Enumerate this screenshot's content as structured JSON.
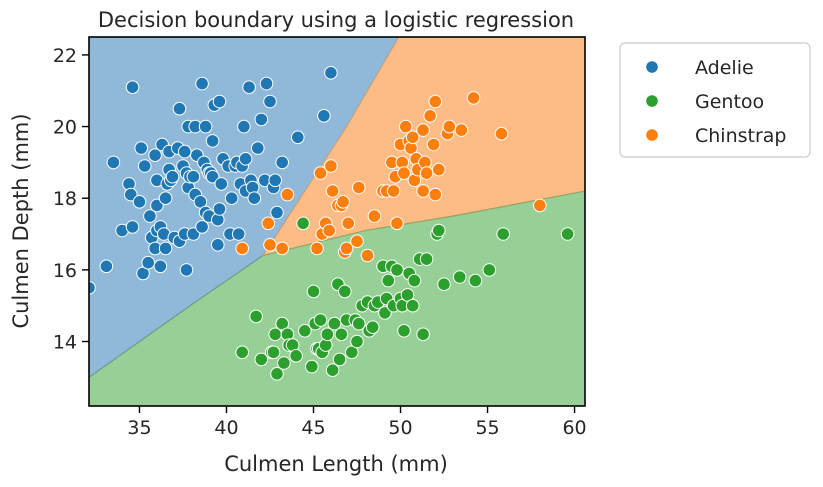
{
  "chart_data": {
    "type": "scatter",
    "title": "Decision boundary using a logistic regression",
    "xlabel": "Culmen Length (mm)",
    "ylabel": "Culmen Depth (mm)",
    "xlim": [
      32.1,
      60.6
    ],
    "ylim": [
      12.2,
      22.5
    ],
    "xticks": [
      35,
      40,
      45,
      50,
      55,
      60
    ],
    "yticks": [
      14,
      16,
      18,
      20,
      22
    ],
    "grid": false,
    "legend_position": "outside-right",
    "regions": [
      {
        "class": "Adelie",
        "color": "#8fb8d9",
        "boundary": [
          [
            32.1,
            13.0
          ],
          [
            38.2,
            15.1
          ],
          [
            42.1,
            16.4
          ],
          [
            46.9,
            20.0
          ],
          [
            49.9,
            22.5
          ]
        ]
      },
      {
        "class": "Chinstrap",
        "color": "#fdbc85",
        "boundary": [
          [
            42.1,
            16.4
          ],
          [
            48.0,
            17.1
          ],
          [
            53.0,
            17.5
          ],
          [
            60.6,
            18.2
          ]
        ]
      },
      {
        "class": "Gentoo",
        "color": "#96d096"
      }
    ],
    "series": [
      {
        "name": "Adelie",
        "color": "#1f77b4",
        "points": [
          [
            32.1,
            15.5
          ],
          [
            33.1,
            16.1
          ],
          [
            33.5,
            19.0
          ],
          [
            34.0,
            17.1
          ],
          [
            34.4,
            18.4
          ],
          [
            34.5,
            18.1
          ],
          [
            34.6,
            17.2
          ],
          [
            34.6,
            21.1
          ],
          [
            35.0,
            17.9
          ],
          [
            35.1,
            19.4
          ],
          [
            35.2,
            15.9
          ],
          [
            35.3,
            18.9
          ],
          [
            35.5,
            16.2
          ],
          [
            35.6,
            17.5
          ],
          [
            35.7,
            16.9
          ],
          [
            35.9,
            19.2
          ],
          [
            35.9,
            16.6
          ],
          [
            36.0,
            17.8
          ],
          [
            36.0,
            18.5
          ],
          [
            36.0,
            17.1
          ],
          [
            36.2,
            16.1
          ],
          [
            36.2,
            17.2
          ],
          [
            36.3,
            19.5
          ],
          [
            36.4,
            17.0
          ],
          [
            36.5,
            16.6
          ],
          [
            36.5,
            18.0
          ],
          [
            36.6,
            18.4
          ],
          [
            36.7,
            19.3
          ],
          [
            36.7,
            18.8
          ],
          [
            36.8,
            18.5
          ],
          [
            36.9,
            18.6
          ],
          [
            37.0,
            16.9
          ],
          [
            37.2,
            19.4
          ],
          [
            37.3,
            16.8
          ],
          [
            37.3,
            20.5
          ],
          [
            37.5,
            18.9
          ],
          [
            37.6,
            19.3
          ],
          [
            37.6,
            17.0
          ],
          [
            37.7,
            18.7
          ],
          [
            37.7,
            16.0
          ],
          [
            37.8,
            20.0
          ],
          [
            37.8,
            18.3
          ],
          [
            37.9,
            18.6
          ],
          [
            38.1,
            18.6
          ],
          [
            38.1,
            17.0
          ],
          [
            38.2,
            18.1
          ],
          [
            38.2,
            20.0
          ],
          [
            38.3,
            19.2
          ],
          [
            38.5,
            17.9
          ],
          [
            38.6,
            21.2
          ],
          [
            38.6,
            17.2
          ],
          [
            38.7,
            19.0
          ],
          [
            38.8,
            17.6
          ],
          [
            38.8,
            20.0
          ],
          [
            38.9,
            18.8
          ],
          [
            39.0,
            17.5
          ],
          [
            39.0,
            18.7
          ],
          [
            39.1,
            18.7
          ],
          [
            39.2,
            19.6
          ],
          [
            39.2,
            18.6
          ],
          [
            39.3,
            20.6
          ],
          [
            39.5,
            17.4
          ],
          [
            39.5,
            16.7
          ],
          [
            39.6,
            17.7
          ],
          [
            39.6,
            20.7
          ],
          [
            39.7,
            18.4
          ],
          [
            39.8,
            19.1
          ],
          [
            40.1,
            18.9
          ],
          [
            40.2,
            17.0
          ],
          [
            40.3,
            18.0
          ],
          [
            40.5,
            18.9
          ],
          [
            40.6,
            19.0
          ],
          [
            40.7,
            17.0
          ],
          [
            40.8,
            18.4
          ],
          [
            40.9,
            18.9
          ],
          [
            41.0,
            20.0
          ],
          [
            41.1,
            18.2
          ],
          [
            41.1,
            19.1
          ],
          [
            41.3,
            21.1
          ],
          [
            41.4,
            18.5
          ],
          [
            41.5,
            18.3
          ],
          [
            41.6,
            18.0
          ],
          [
            41.8,
            19.4
          ],
          [
            42.0,
            20.2
          ],
          [
            42.2,
            18.5
          ],
          [
            42.3,
            21.2
          ],
          [
            42.5,
            20.7
          ],
          [
            42.7,
            18.3
          ],
          [
            42.8,
            18.5
          ],
          [
            42.9,
            17.6
          ],
          [
            43.2,
            19.0
          ],
          [
            44.1,
            19.7
          ],
          [
            45.6,
            20.3
          ],
          [
            46.0,
            21.5
          ]
        ]
      },
      {
        "name": "Gentoo",
        "color": "#2ca02c",
        "points": [
          [
            40.9,
            13.7
          ],
          [
            41.7,
            14.7
          ],
          [
            42.0,
            13.5
          ],
          [
            42.6,
            13.7
          ],
          [
            42.7,
            13.7
          ],
          [
            42.8,
            14.2
          ],
          [
            42.9,
            13.1
          ],
          [
            43.2,
            14.5
          ],
          [
            43.3,
            13.4
          ],
          [
            43.5,
            14.2
          ],
          [
            43.6,
            13.9
          ],
          [
            43.8,
            13.9
          ],
          [
            44.0,
            13.6
          ],
          [
            44.4,
            17.3
          ],
          [
            44.5,
            14.3
          ],
          [
            44.9,
            13.3
          ],
          [
            45.0,
            15.4
          ],
          [
            45.1,
            14.5
          ],
          [
            45.2,
            13.8
          ],
          [
            45.3,
            13.8
          ],
          [
            45.4,
            14.6
          ],
          [
            45.5,
            13.7
          ],
          [
            45.7,
            13.9
          ],
          [
            45.8,
            14.2
          ],
          [
            46.1,
            13.2
          ],
          [
            46.2,
            14.5
          ],
          [
            46.4,
            15.6
          ],
          [
            46.5,
            13.5
          ],
          [
            46.6,
            14.2
          ],
          [
            46.8,
            15.4
          ],
          [
            46.9,
            14.6
          ],
          [
            47.2,
            13.7
          ],
          [
            47.4,
            14.6
          ],
          [
            47.5,
            14.0
          ],
          [
            47.6,
            14.5
          ],
          [
            47.8,
            15.0
          ],
          [
            48.1,
            15.1
          ],
          [
            48.2,
            14.3
          ],
          [
            48.4,
            14.4
          ],
          [
            48.5,
            15.0
          ],
          [
            48.7,
            15.1
          ],
          [
            49.0,
            16.1
          ],
          [
            49.1,
            14.8
          ],
          [
            49.2,
            15.2
          ],
          [
            49.3,
            15.7
          ],
          [
            49.5,
            16.1
          ],
          [
            49.6,
            15.0
          ],
          [
            49.8,
            16.0
          ],
          [
            50.0,
            15.2
          ],
          [
            50.1,
            15.0
          ],
          [
            50.2,
            14.3
          ],
          [
            50.4,
            15.3
          ],
          [
            50.5,
            15.9
          ],
          [
            50.7,
            15.0
          ],
          [
            50.8,
            15.7
          ],
          [
            51.1,
            16.3
          ],
          [
            51.3,
            14.2
          ],
          [
            51.5,
            16.3
          ],
          [
            52.1,
            17.0
          ],
          [
            52.2,
            17.1
          ],
          [
            52.5,
            15.6
          ],
          [
            53.4,
            15.8
          ],
          [
            54.3,
            15.7
          ],
          [
            55.1,
            16.0
          ],
          [
            55.9,
            17.0
          ],
          [
            59.6,
            17.0
          ]
        ]
      },
      {
        "name": "Chinstrap",
        "color": "#ff7f0e",
        "points": [
          [
            40.9,
            16.6
          ],
          [
            42.4,
            17.3
          ],
          [
            42.5,
            16.7
          ],
          [
            43.2,
            16.6
          ],
          [
            43.5,
            18.1
          ],
          [
            45.2,
            16.6
          ],
          [
            45.4,
            18.7
          ],
          [
            45.5,
            17.0
          ],
          [
            45.7,
            17.3
          ],
          [
            45.9,
            17.1
          ],
          [
            46.0,
            18.9
          ],
          [
            46.1,
            18.2
          ],
          [
            46.4,
            17.8
          ],
          [
            46.6,
            17.8
          ],
          [
            46.7,
            17.9
          ],
          [
            46.8,
            16.5
          ],
          [
            46.9,
            16.6
          ],
          [
            47.0,
            17.3
          ],
          [
            47.5,
            16.8
          ],
          [
            47.6,
            18.3
          ],
          [
            48.1,
            16.4
          ],
          [
            48.5,
            17.5
          ],
          [
            49.0,
            18.2
          ],
          [
            49.2,
            18.2
          ],
          [
            49.5,
            19.0
          ],
          [
            49.6,
            18.2
          ],
          [
            49.7,
            18.6
          ],
          [
            49.8,
            17.3
          ],
          [
            50.0,
            19.5
          ],
          [
            50.1,
            19.0
          ],
          [
            50.2,
            18.7
          ],
          [
            50.3,
            20.0
          ],
          [
            50.5,
            19.6
          ],
          [
            50.6,
            19.4
          ],
          [
            50.7,
            19.7
          ],
          [
            50.8,
            18.5
          ],
          [
            50.9,
            19.1
          ],
          [
            51.0,
            18.8
          ],
          [
            51.3,
            18.2
          ],
          [
            51.3,
            19.9
          ],
          [
            51.4,
            19.0
          ],
          [
            51.5,
            18.7
          ],
          [
            51.7,
            20.3
          ],
          [
            51.9,
            19.5
          ],
          [
            52.0,
            18.1
          ],
          [
            52.0,
            20.7
          ],
          [
            52.2,
            18.8
          ],
          [
            52.7,
            19.8
          ],
          [
            52.8,
            20.0
          ],
          [
            53.5,
            19.9
          ],
          [
            54.2,
            20.8
          ],
          [
            55.8,
            19.8
          ],
          [
            58.0,
            17.8
          ]
        ]
      }
    ]
  }
}
